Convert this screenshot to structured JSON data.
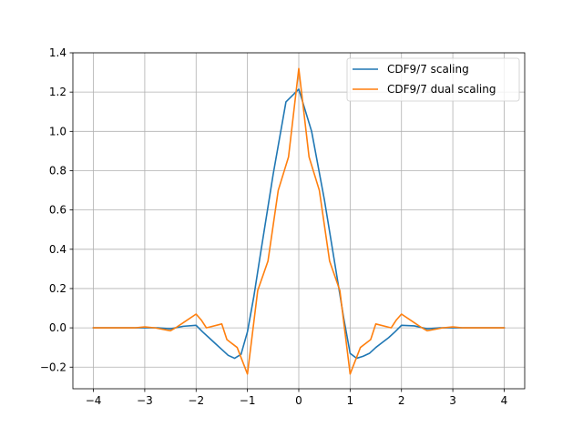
{
  "chart_data": {
    "type": "line",
    "title": "",
    "xlabel": "",
    "ylabel": "",
    "xlim": [
      -4.4,
      4.4
    ],
    "ylim": [
      -0.31,
      1.4
    ],
    "grid": true,
    "legend_position": "top-right",
    "xticks": [
      -4,
      -3,
      -2,
      -1,
      0,
      1,
      2,
      3,
      4
    ],
    "xtick_labels": [
      "−4",
      "−3",
      "−2",
      "−1",
      "0",
      "1",
      "2",
      "3",
      "4"
    ],
    "yticks": [
      -0.2,
      0.0,
      0.2,
      0.4,
      0.6,
      0.8,
      1.0,
      1.2,
      1.4
    ],
    "ytick_labels": [
      "−0.2",
      "0.0",
      "0.2",
      "0.4",
      "0.6",
      "0.8",
      "1.0",
      "1.2",
      "1.4"
    ],
    "series": [
      {
        "name": "CDF9/7 scaling",
        "color": "#1f77b4",
        "x": [
          -4,
          -3.5,
          -3,
          -2.75,
          -2.5,
          -2.25,
          -2.0,
          -1.875,
          -1.75,
          -1.625,
          -1.5,
          -1.375,
          -1.25,
          -1.125,
          -1.0,
          -0.875,
          -0.75,
          -0.5,
          -0.25,
          0.0,
          0.25,
          0.5,
          0.75,
          0.875,
          1.0,
          1.125,
          1.25,
          1.375,
          1.5,
          1.625,
          1.75,
          1.875,
          2.0,
          2.25,
          2.5,
          2.75,
          3.0,
          3.5,
          4.0
        ],
        "y": [
          0.0,
          0.0,
          0.0,
          0.0,
          -0.005,
          0.008,
          0.013,
          -0.02,
          -0.05,
          -0.08,
          -0.11,
          -0.14,
          -0.155,
          -0.135,
          -0.02,
          0.16,
          0.37,
          0.78,
          1.15,
          1.215,
          1.0,
          0.65,
          0.25,
          0.05,
          -0.13,
          -0.155,
          -0.145,
          -0.13,
          -0.1,
          -0.075,
          -0.05,
          -0.02,
          0.013,
          0.01,
          -0.005,
          0.0,
          0.0,
          0.0,
          0.0
        ]
      },
      {
        "name": "CDF9/7 dual scaling",
        "color": "#ff7f0e",
        "x": [
          -4,
          -3.5,
          -3.2,
          -3.0,
          -2.8,
          -2.5,
          -2.4,
          -2.2,
          -2.0,
          -1.9,
          -1.8,
          -1.5,
          -1.4,
          -1.2,
          -1.0,
          -0.8,
          -0.6,
          -0.4,
          -0.2,
          0.0,
          0.2,
          0.4,
          0.6,
          0.8,
          1.0,
          1.2,
          1.4,
          1.5,
          1.8,
          1.9,
          2.0,
          2.2,
          2.4,
          2.5,
          2.8,
          3.0,
          3.2,
          3.5,
          4.0
        ],
        "y": [
          0.0,
          0.0,
          0.0,
          0.005,
          0.0,
          -0.015,
          0.0,
          0.035,
          0.07,
          0.04,
          0.0,
          0.02,
          -0.06,
          -0.1,
          -0.235,
          0.19,
          0.34,
          0.7,
          0.87,
          1.32,
          0.87,
          0.7,
          0.34,
          0.19,
          -0.235,
          -0.1,
          -0.06,
          0.02,
          0.0,
          0.04,
          0.07,
          0.035,
          0.0,
          -0.015,
          0.0,
          0.005,
          0.0,
          0.0,
          0.0
        ]
      }
    ]
  }
}
